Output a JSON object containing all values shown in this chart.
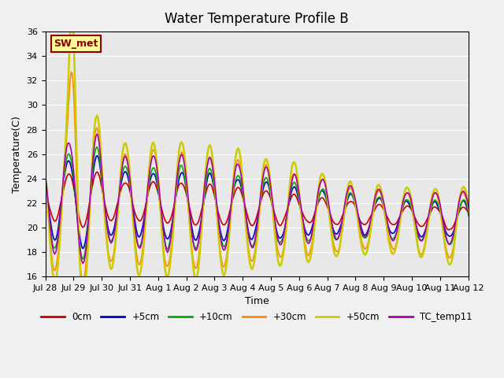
{
  "title": "Water Temperature Profile B",
  "xlabel": "Time",
  "ylabel": "Temperature(C)",
  "ylim": [
    16,
    36
  ],
  "annotation": "SW_met",
  "bg_color": "#e8e8e8",
  "legend_labels": [
    "0cm",
    "+5cm",
    "+10cm",
    "+30cm",
    "+50cm",
    "TC_temp11"
  ],
  "legend_colors": [
    "#cc0000",
    "#0000cc",
    "#00aa00",
    "#ff8800",
    "#cccc00",
    "#aa00aa"
  ],
  "line_widths": [
    1.2,
    1.2,
    1.2,
    1.2,
    1.8,
    1.2
  ],
  "xtick_labels": [
    "Jul 28",
    "Jul 29",
    "Jul 30",
    "Jul 31",
    "Aug 1",
    "Aug 2",
    "Aug 3",
    "Aug 4",
    "Aug 5",
    "Aug 6",
    "Aug 7",
    "Aug 8",
    "Aug 9",
    "Aug 10",
    "Aug 11",
    "Aug 12"
  ],
  "xtick_positions": [
    0,
    24,
    48,
    72,
    96,
    120,
    144,
    168,
    192,
    216,
    240,
    264,
    288,
    312,
    336,
    360
  ]
}
